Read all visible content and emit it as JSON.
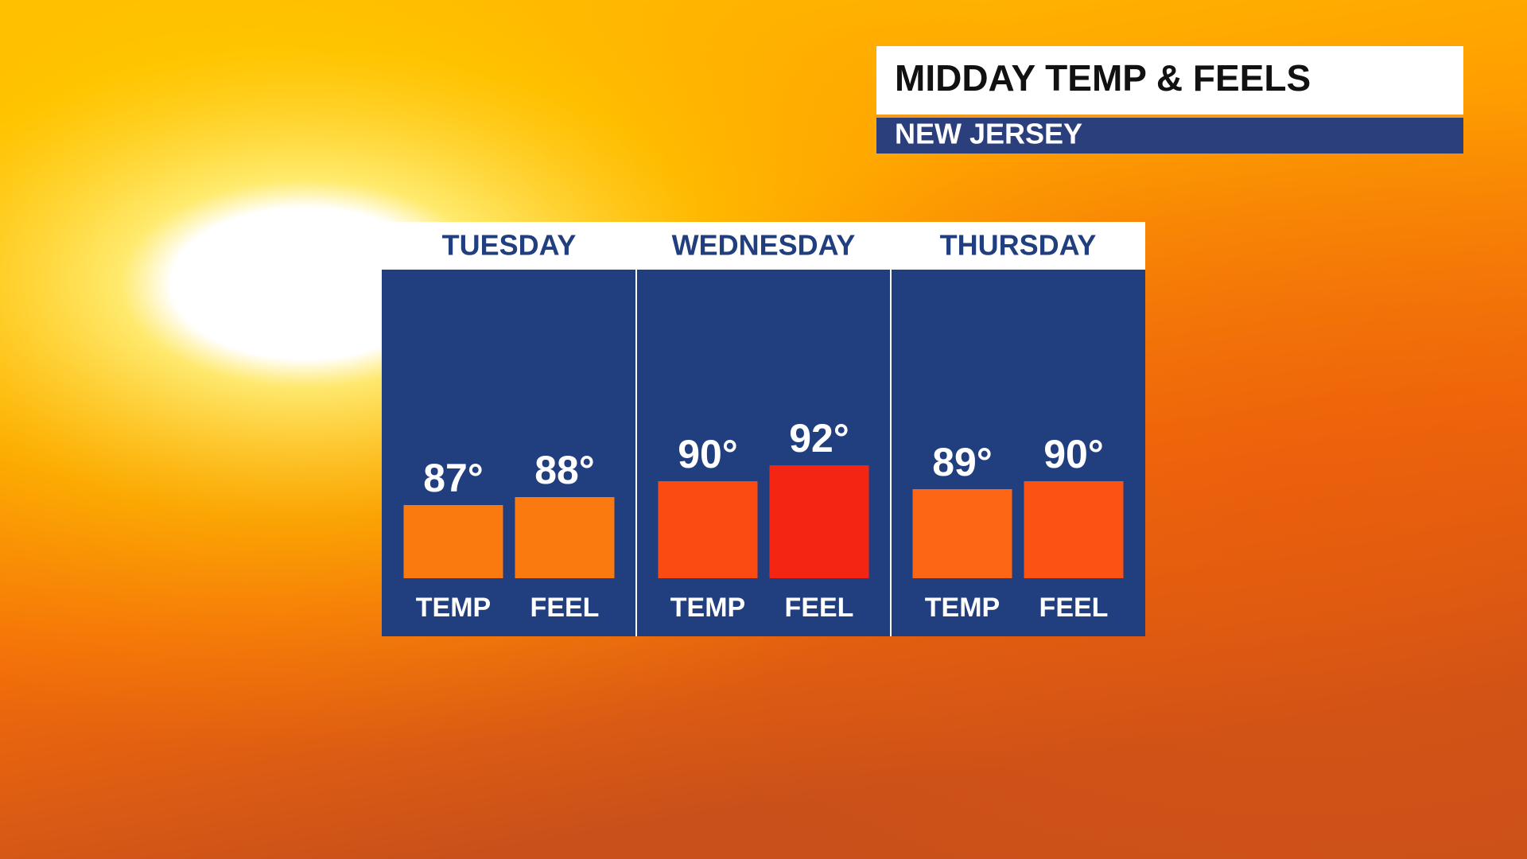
{
  "chart_data": {
    "type": "bar",
    "title": "MIDDAY TEMP & FEELS",
    "subtitle": "NEW JERSEY",
    "categories": [
      "TUESDAY",
      "WEDNESDAY",
      "THURSDAY"
    ],
    "series": [
      {
        "name": "TEMP",
        "colors": [
          "#fb7a10",
          "#fb4a12",
          "#fd6614"
        ],
        "values": [
          87,
          90,
          89
        ],
        "value_labels": [
          "87°",
          "90°",
          "89°"
        ]
      },
      {
        "name": "FEEL",
        "colors": [
          "#fb7a10",
          "#f42512",
          "#fc5214"
        ],
        "values": [
          88,
          92,
          90
        ],
        "value_labels": [
          "88°",
          "92°",
          "90°"
        ]
      }
    ]
  }
}
